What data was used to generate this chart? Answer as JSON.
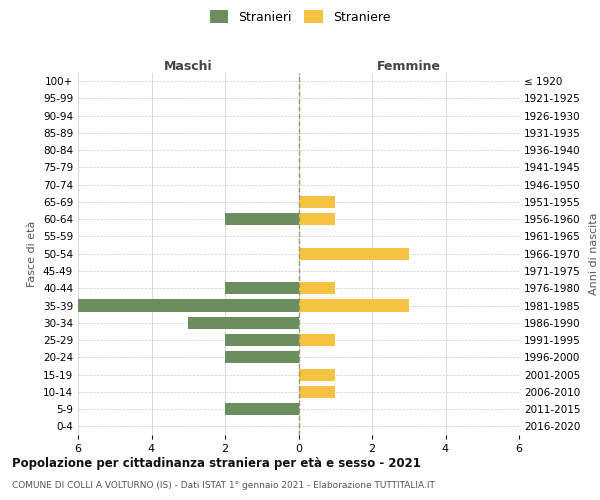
{
  "age_groups": [
    "100+",
    "95-99",
    "90-94",
    "85-89",
    "80-84",
    "75-79",
    "70-74",
    "65-69",
    "60-64",
    "55-59",
    "50-54",
    "45-49",
    "40-44",
    "35-39",
    "30-34",
    "25-29",
    "20-24",
    "15-19",
    "10-14",
    "5-9",
    "0-4"
  ],
  "birth_years": [
    "≤ 1920",
    "1921-1925",
    "1926-1930",
    "1931-1935",
    "1936-1940",
    "1941-1945",
    "1946-1950",
    "1951-1955",
    "1956-1960",
    "1961-1965",
    "1966-1970",
    "1971-1975",
    "1976-1980",
    "1981-1985",
    "1986-1990",
    "1991-1995",
    "1996-2000",
    "2001-2005",
    "2006-2010",
    "2011-2015",
    "2016-2020"
  ],
  "maschi": [
    0,
    0,
    0,
    0,
    0,
    0,
    0,
    0,
    2,
    0,
    0,
    0,
    2,
    6,
    3,
    2,
    2,
    0,
    0,
    2,
    0
  ],
  "femmine": [
    0,
    0,
    0,
    0,
    0,
    0,
    0,
    1,
    1,
    0,
    3,
    0,
    1,
    3,
    0,
    1,
    0,
    1,
    1,
    0,
    0
  ],
  "maschi_color": "#6b8e5e",
  "femmine_color": "#f5c242",
  "title": "Popolazione per cittadinanza straniera per età e sesso - 2021",
  "subtitle": "COMUNE DI COLLI A VOLTURNO (IS) - Dati ISTAT 1° gennaio 2021 - Elaborazione TUTTITALIA.IT",
  "legend_maschi": "Stranieri",
  "legend_femmine": "Straniere",
  "xlabel_left": "Maschi",
  "xlabel_right": "Femmine",
  "ylabel_left": "Fasce di età",
  "ylabel_right": "Anni di nascita",
  "xlim": 6,
  "background_color": "#ffffff",
  "grid_color": "#cccccc"
}
